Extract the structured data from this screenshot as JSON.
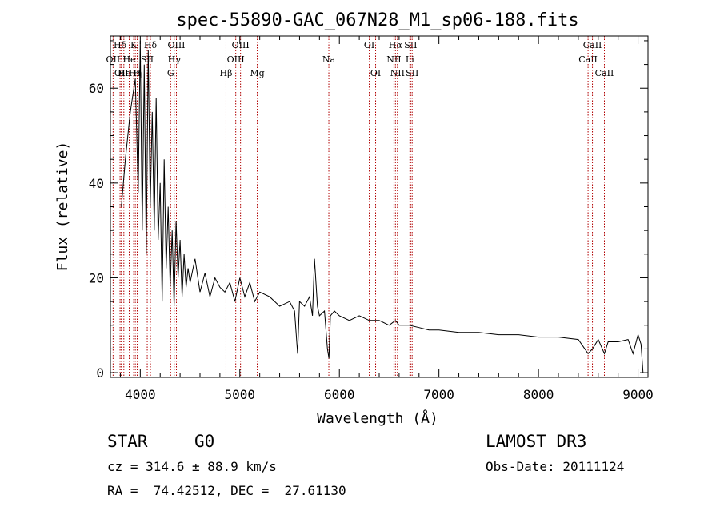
{
  "chart_data": {
    "type": "line",
    "title": "spec-55890-GAC_067N28_M1_sp06-188.fits",
    "xlabel": "Wavelength (Å)",
    "ylabel": "Flux (relative)",
    "xlim": [
      3700,
      9100
    ],
    "ylim": [
      -1,
      71
    ],
    "x_ticks": [
      4000,
      5000,
      6000,
      7000,
      8000,
      9000
    ],
    "x_tick_labels": [
      "4000",
      "5000",
      "6000",
      "7000",
      "8000",
      "9000"
    ],
    "y_ticks": [
      0,
      20,
      40,
      60
    ],
    "y_tick_labels": [
      "0",
      "20",
      "40",
      "60"
    ],
    "grid": false,
    "series": [
      {
        "name": "spectrum",
        "x": [
          3810,
          3850,
          3900,
          3950,
          3980,
          4000,
          4020,
          4040,
          4060,
          4080,
          4100,
          4120,
          4140,
          4160,
          4180,
          4200,
          4220,
          4240,
          4260,
          4280,
          4300,
          4320,
          4340,
          4360,
          4380,
          4400,
          4420,
          4440,
          4460,
          4480,
          4500,
          4550,
          4600,
          4650,
          4700,
          4750,
          4800,
          4850,
          4900,
          4950,
          5000,
          5050,
          5100,
          5150,
          5200,
          5300,
          5400,
          5500,
          5550,
          5580,
          5600,
          5650,
          5700,
          5730,
          5750,
          5780,
          5800,
          5850,
          5880,
          5895,
          5910,
          5950,
          6000,
          6100,
          6200,
          6300,
          6400,
          6500,
          6563,
          6600,
          6700,
          6800,
          6900,
          7000,
          7200,
          7400,
          7600,
          7800,
          8000,
          8200,
          8400,
          8498,
          8542,
          8600,
          8662,
          8700,
          8800,
          8900,
          8950,
          9000,
          9030,
          9050
        ],
        "y": [
          35,
          45,
          55,
          62,
          38,
          70,
          30,
          65,
          25,
          68,
          35,
          55,
          30,
          58,
          28,
          40,
          15,
          45,
          22,
          35,
          18,
          30,
          14,
          32,
          20,
          28,
          16,
          25,
          18,
          22,
          19,
          24,
          17,
          21,
          16,
          20,
          18,
          17,
          19,
          15,
          20,
          16,
          19,
          15,
          17,
          16,
          14,
          15,
          13,
          4,
          15,
          14,
          16,
          12,
          24,
          14,
          12,
          13,
          5,
          3,
          12,
          13,
          12,
          11,
          12,
          11,
          11,
          10,
          11,
          10,
          10,
          9.5,
          9,
          9,
          8.5,
          8.5,
          8,
          8,
          7.5,
          7.5,
          7,
          4,
          5,
          7,
          4,
          6.5,
          6.5,
          7,
          4,
          8,
          6,
          0
        ]
      }
    ],
    "lines": [
      {
        "label": "OII",
        "x": 3727,
        "row": 1
      },
      {
        "label": "Hδ",
        "x": 3797,
        "row": 0
      },
      {
        "label": "OII",
        "x": 3810,
        "row": 2
      },
      {
        "label": "Hε",
        "x": 3835,
        "row": 2
      },
      {
        "label": "He",
        "x": 3889,
        "row": 1
      },
      {
        "label": "K",
        "x": 3934,
        "row": 0
      },
      {
        "label": "Hη",
        "x": 3950,
        "row": 2
      },
      {
        "label": "H",
        "x": 3969,
        "row": 2
      },
      {
        "label": "SII",
        "x": 4070,
        "row": 1
      },
      {
        "label": "Hδ",
        "x": 4102,
        "row": 0
      },
      {
        "label": "G",
        "x": 4305,
        "row": 2
      },
      {
        "label": "Hγ",
        "x": 4341,
        "row": 1
      },
      {
        "label": "OIII",
        "x": 4363,
        "row": 0
      },
      {
        "label": "Hβ",
        "x": 4861,
        "row": 2
      },
      {
        "label": "OIII",
        "x": 4959,
        "row": 1
      },
      {
        "label": "OIII",
        "x": 5007,
        "row": 0
      },
      {
        "label": "Mg",
        "x": 5175,
        "row": 2
      },
      {
        "label": "Na",
        "x": 5894,
        "row": 1
      },
      {
        "label": "OI",
        "x": 6300,
        "row": 0
      },
      {
        "label": "OI",
        "x": 6364,
        "row": 2
      },
      {
        "label": "NII",
        "x": 6548,
        "row": 1
      },
      {
        "label": "Hα",
        "x": 6563,
        "row": 0
      },
      {
        "label": "NII",
        "x": 6583,
        "row": 2
      },
      {
        "label": "Li",
        "x": 6708,
        "row": 1
      },
      {
        "label": "SII",
        "x": 6716,
        "row": 0
      },
      {
        "label": "SII",
        "x": 6731,
        "row": 2
      },
      {
        "label": "CaII",
        "x": 8498,
        "row": 1
      },
      {
        "label": "CaII",
        "x": 8542,
        "row": 0
      },
      {
        "label": "CaII",
        "x": 8662,
        "row": 2
      }
    ]
  },
  "info": {
    "class": "STAR",
    "subclass": "G0",
    "survey": "LAMOST DR3",
    "cz": "cz = 314.6 ± 88.9 km/s",
    "obs_date": "Obs-Date: 20111124",
    "coords": "RA =  74.42512, DEC =  27.61130"
  }
}
